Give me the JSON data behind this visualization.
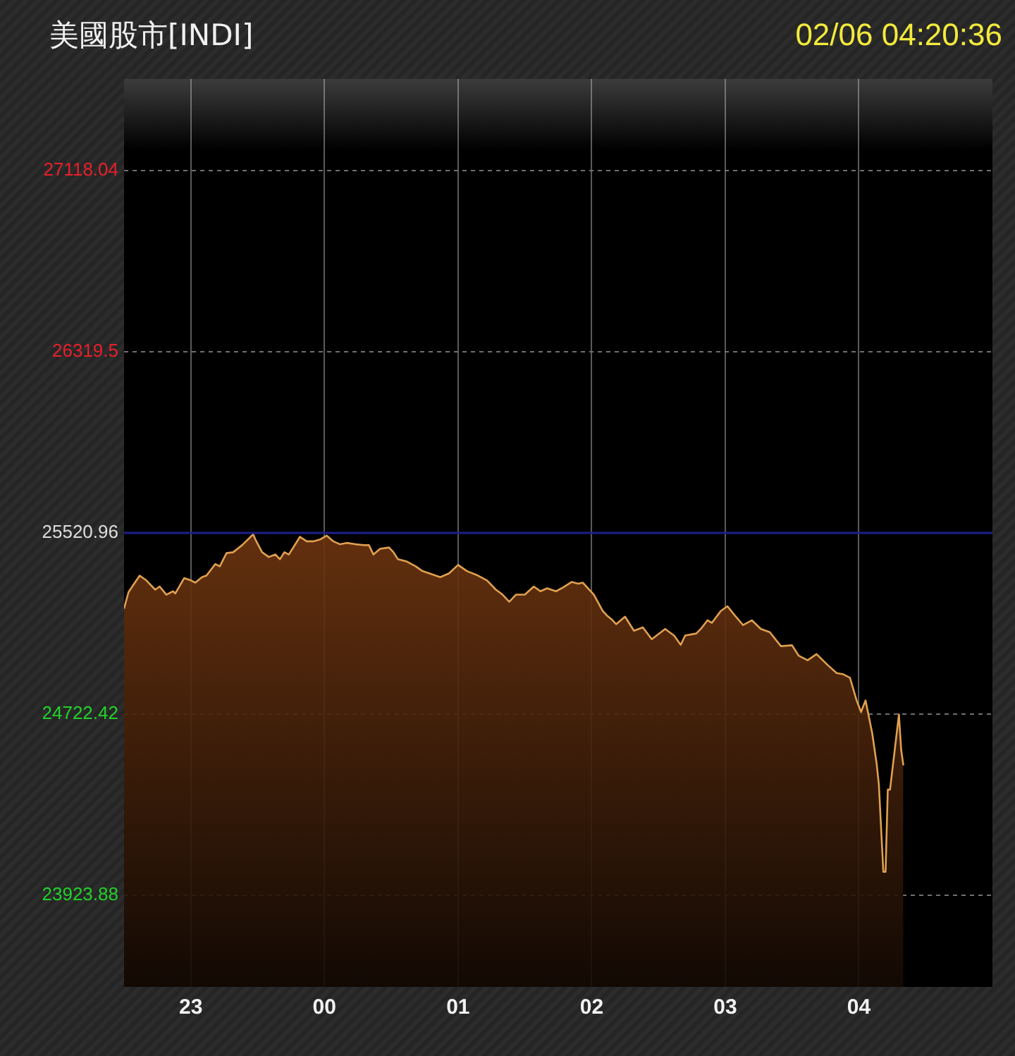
{
  "chart_data": {
    "type": "area",
    "title": "美國股市[INDI]",
    "subtitle": "02/06 04:20:36",
    "x": [
      "--02-05T22:30",
      "--02-05T22:32",
      "--02-05T22:37",
      "--02-05T22:40",
      "--02-05T22:44",
      "--02-05T22:46",
      "--02-05T22:49",
      "--02-05T22:52",
      "--02-05T22:53",
      "--02-05T22:57",
      "--02-05T23:00",
      "--02-05T23:02",
      "--02-05T23:05",
      "--02-05T23:07",
      "--02-05T23:11",
      "--02-05T23:13",
      "--02-05T23:16",
      "--02-05T23:19",
      "--02-05T23:23",
      "--02-05T23:28",
      "--02-05T23:29",
      "--02-05T23:32",
      "--02-05T23:35",
      "--02-05T23:38",
      "--02-05T23:40",
      "--02-05T23:42",
      "--02-05T23:44",
      "--02-05T23:49",
      "--02-05T23:52",
      "--02-05T23:55",
      "--02-05T23:58",
      "--02-06T00:01",
      "--02-06T00:04",
      "--02-06T00:07",
      "--02-06T00:10",
      "--02-06T00:14",
      "--02-06T00:18",
      "--02-06T00:20",
      "--02-06T00:22",
      "--02-06T00:25",
      "--02-06T00:29",
      "--02-06T00:31",
      "--02-06T00:33",
      "--02-06T00:37",
      "--02-06T00:41",
      "--02-06T00:44",
      "--02-06T00:47",
      "--02-06T00:52",
      "--02-06T00:56",
      "--02-06T01:00",
      "--02-06T01:04",
      "--02-06T01:09",
      "--02-06T01:13",
      "--02-06T01:17",
      "--02-06T01:20",
      "--02-06T01:23",
      "--02-06T01:26",
      "--02-06T01:30",
      "--02-06T01:34",
      "--02-06T01:37",
      "--02-06T01:40",
      "--02-06T01:44",
      "--02-06T01:47",
      "--02-06T01:51",
      "--02-06T01:54",
      "--02-06T01:56",
      "--02-06T02:01",
      "--02-06T02:05",
      "--02-06T02:07",
      "--02-06T02:09",
      "--02-06T02:11",
      "--02-06T02:15",
      "--02-06T02:19",
      "--02-06T02:23",
      "--02-06T02:27",
      "--02-06T02:33",
      "--02-06T02:37",
      "--02-06T02:40",
      "--02-06T02:42",
      "--02-06T02:47",
      "--02-06T02:49",
      "--02-06T02:52",
      "--02-06T02:54",
      "--02-06T02:58",
      "--02-06T03:01",
      "--02-06T03:04",
      "--02-06T03:08",
      "--02-06T03:12",
      "--02-06T03:16",
      "--02-06T03:20",
      "--02-06T03:25",
      "--02-06T03:30",
      "--02-06T03:33",
      "--02-06T03:37",
      "--02-06T03:41",
      "--02-06T03:46",
      "--02-06T03:50",
      "--02-06T03:53",
      "--02-06T03:56",
      "--02-06T03:59",
      "--02-06T04:01",
      "--02-06T04:03",
      "--02-06T04:06",
      "--02-06T04:08",
      "--02-06T04:09",
      "--02-06T04:11",
      "--02-06T04:12",
      "--02-06T04:13",
      "--02-06T04:14",
      "--02-06T04:18",
      "--02-06T04:19",
      "--02-06T04:20"
    ],
    "series": [
      {
        "color": "#e0a050",
        "values": [
          25187,
          25260,
          25333,
          25312,
          25271,
          25285,
          25249,
          25264,
          25254,
          25322,
          25312,
          25302,
          25326,
          25333,
          25384,
          25374,
          25432,
          25436,
          25467,
          25515,
          25492,
          25436,
          25415,
          25426,
          25405,
          25436,
          25426,
          25504,
          25484,
          25484,
          25492,
          25509,
          25484,
          25471,
          25477,
          25471,
          25467,
          25467,
          25426,
          25451,
          25457,
          25436,
          25405,
          25395,
          25374,
          25353,
          25343,
          25326,
          25343,
          25380,
          25353,
          25333,
          25312,
          25271,
          25249,
          25218,
          25249,
          25249,
          25285,
          25264,
          25277,
          25264,
          25280,
          25305,
          25297,
          25302,
          25249,
          25177,
          25156,
          25140,
          25119,
          25152,
          25090,
          25105,
          25053,
          25098,
          25069,
          25028,
          25069,
          25078,
          25098,
          25136,
          25125,
          25177,
          25198,
          25161,
          25115,
          25136,
          25098,
          25084,
          25022,
          25026,
          24980,
          24960,
          24987,
          24939,
          24904,
          24898,
          24883,
          24783,
          24732,
          24783,
          24639,
          24504,
          24411,
          24028,
          24028,
          24390,
          24390,
          24721,
          24566,
          24497
        ]
      }
    ],
    "xlim": [
      "--02-05T22:30",
      "--02-06T05:00"
    ],
    "xticks": [
      {
        "value": "--02-05T23:00",
        "label": "23"
      },
      {
        "value": "--02-06T00:00",
        "label": "00"
      },
      {
        "value": "--02-06T01:00",
        "label": "01"
      },
      {
        "value": "--02-06T02:00",
        "label": "02"
      },
      {
        "value": "--02-06T03:00",
        "label": "03"
      },
      {
        "value": "--02-06T04:00",
        "label": "04"
      }
    ],
    "ylim": [
      23520.96,
      27520.96
    ],
    "yticks": [
      23923.88,
      24722.42,
      25520.96,
      26319.5,
      27118.04
    ],
    "ref_lines": [
      {
        "axis": "y",
        "value": 25520.96,
        "color": "#1e1e8c"
      }
    ],
    "grid": true,
    "marker": "none",
    "line_style": "solid"
  }
}
